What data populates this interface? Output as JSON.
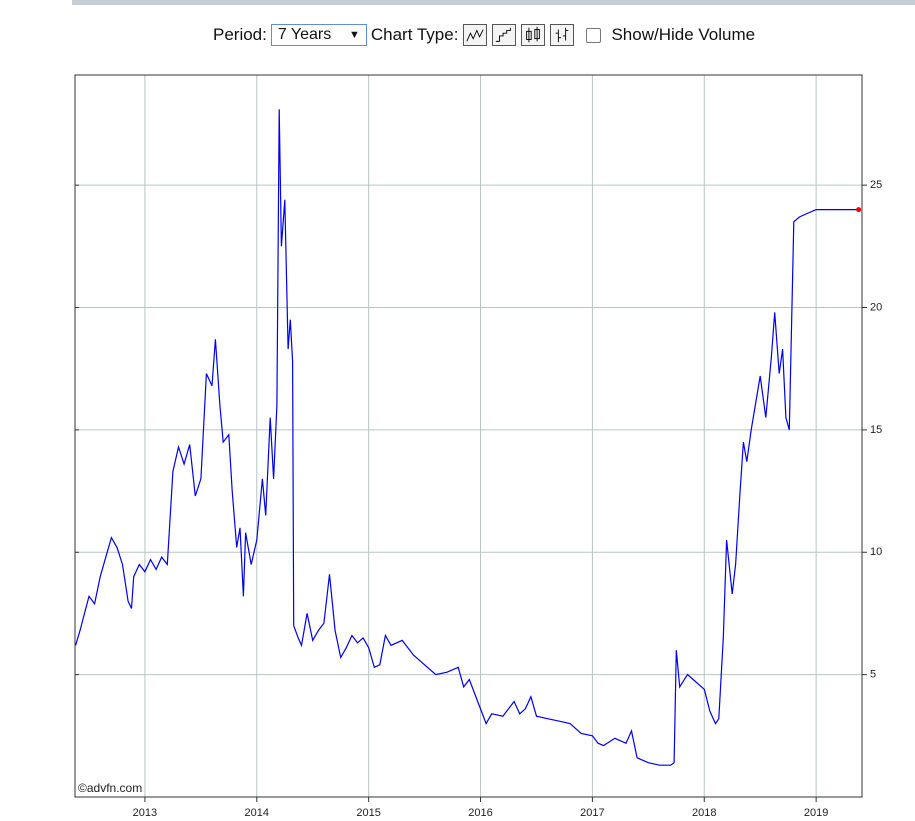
{
  "controls": {
    "period_label": "Period:",
    "period_value": "7 Years",
    "chart_type_label": "Chart Type:",
    "volume_label": "Show/Hide Volume"
  },
  "chart_data": {
    "type": "line",
    "watermark": "©advfn.com",
    "x": [
      2012.38,
      2012.42,
      2012.46,
      2012.5,
      2012.55,
      2012.6,
      2012.65,
      2012.7,
      2012.75,
      2012.8,
      2012.85,
      2012.88,
      2012.9,
      2012.95,
      2013.0,
      2013.05,
      2013.1,
      2013.15,
      2013.2,
      2013.25,
      2013.3,
      2013.35,
      2013.4,
      2013.45,
      2013.5,
      2013.55,
      2013.6,
      2013.63,
      2013.67,
      2013.7,
      2013.75,
      2013.78,
      2013.82,
      2013.85,
      2013.88,
      2013.9,
      2013.95,
      2014.0,
      2014.05,
      2014.08,
      2014.12,
      2014.15,
      2014.18,
      2014.2,
      2014.22,
      2014.25,
      2014.28,
      2014.3,
      2014.32,
      2014.33,
      2014.37,
      2014.4,
      2014.45,
      2014.5,
      2014.55,
      2014.6,
      2014.65,
      2014.7,
      2014.75,
      2014.8,
      2014.85,
      2014.9,
      2014.95,
      2015.0,
      2015.05,
      2015.1,
      2015.15,
      2015.2,
      2015.3,
      2015.4,
      2015.5,
      2015.6,
      2015.7,
      2015.8,
      2015.85,
      2015.9,
      2016.0,
      2016.05,
      2016.1,
      2016.2,
      2016.3,
      2016.35,
      2016.4,
      2016.45,
      2016.5,
      2016.6,
      2016.7,
      2016.8,
      2016.9,
      2017.0,
      2017.05,
      2017.1,
      2017.2,
      2017.3,
      2017.35,
      2017.4,
      2017.5,
      2017.6,
      2017.7,
      2017.73,
      2017.75,
      2017.78,
      2017.85,
      2017.9,
      2018.0,
      2018.05,
      2018.1,
      2018.13,
      2018.17,
      2018.2,
      2018.25,
      2018.28,
      2018.32,
      2018.35,
      2018.38,
      2018.42,
      2018.5,
      2018.55,
      2018.6,
      2018.63,
      2018.67,
      2018.7,
      2018.73,
      2018.76,
      2018.8,
      2018.85,
      2018.9,
      2019.0,
      2019.38
    ],
    "values": [
      6.2,
      6.8,
      7.5,
      8.2,
      7.9,
      9.0,
      9.8,
      10.6,
      10.2,
      9.5,
      8.0,
      7.7,
      9.0,
      9.5,
      9.2,
      9.7,
      9.3,
      9.8,
      9.5,
      13.3,
      14.3,
      13.6,
      14.4,
      12.3,
      13.0,
      17.3,
      16.8,
      18.7,
      16.0,
      14.5,
      14.8,
      12.5,
      10.2,
      11.0,
      8.2,
      10.8,
      9.5,
      10.5,
      13.0,
      11.5,
      15.5,
      13.0,
      16.0,
      28.1,
      22.5,
      24.4,
      18.3,
      19.5,
      17.8,
      7.0,
      6.5,
      6.2,
      7.5,
      6.4,
      6.8,
      7.1,
      9.1,
      6.8,
      5.7,
      6.1,
      6.6,
      6.3,
      6.5,
      6.1,
      5.3,
      5.4,
      6.6,
      6.2,
      6.4,
      5.8,
      5.4,
      5.0,
      5.1,
      5.3,
      4.5,
      4.8,
      3.6,
      3.0,
      3.4,
      3.3,
      3.9,
      3.4,
      3.6,
      4.1,
      3.3,
      3.2,
      3.1,
      3.0,
      2.6,
      2.5,
      2.2,
      2.1,
      2.4,
      2.2,
      2.7,
      1.6,
      1.4,
      1.3,
      1.3,
      1.4,
      6.0,
      4.5,
      5.0,
      4.8,
      4.4,
      3.5,
      3.0,
      3.2,
      6.5,
      10.5,
      8.3,
      9.5,
      12.5,
      14.5,
      13.7,
      15.0,
      17.2,
      15.5,
      18.0,
      19.8,
      17.3,
      18.3,
      15.5,
      15.0,
      23.5,
      23.7,
      23.8,
      24.0,
      24.0
    ],
    "color": "#0000ee",
    "last_point_color": "#ee0000",
    "xlim": [
      2012.375,
      2019.41
    ],
    "xticks": [
      2013,
      2014,
      2015,
      2016,
      2017,
      2018,
      2019
    ],
    "ylim": [
      0,
      29.5
    ],
    "yticks": [
      5,
      10,
      15,
      20,
      25
    ],
    "grid": true
  }
}
